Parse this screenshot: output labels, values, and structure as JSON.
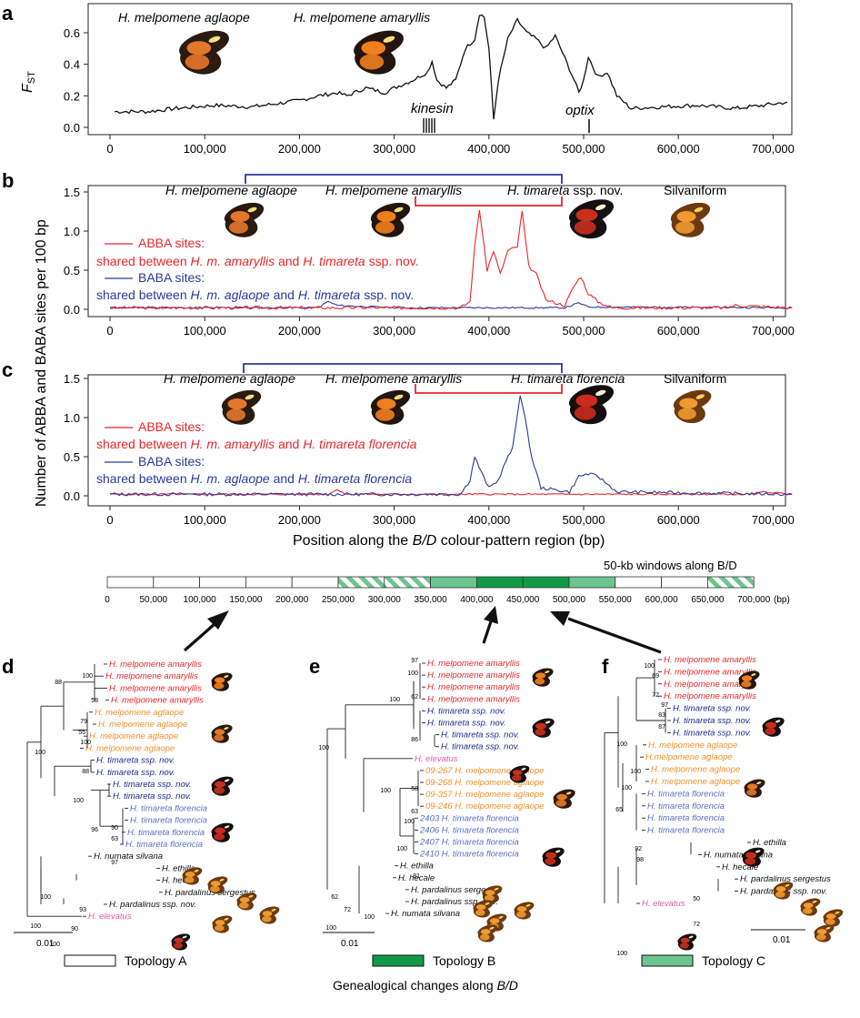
{
  "panels": {
    "a": "a",
    "b": "b",
    "c": "c",
    "d": "d",
    "e": "e",
    "f": "f"
  },
  "panel_a": {
    "ylabel": "FST",
    "ylabel_main": "F",
    "ylabel_sub": "ST",
    "yticks": [
      "0.0",
      "0.2",
      "0.4",
      "0.6"
    ],
    "species_left": "H. melpomene aglaope",
    "species_right": "H. melpomene amaryllis",
    "gene1": "kinesin",
    "gene2": "optix"
  },
  "xticks": [
    "0",
    "100,000",
    "200,000",
    "300,000",
    "400,000",
    "500,000",
    "600,000",
    "700,000"
  ],
  "panel_b": {
    "sp1": "H. melpomene aglaope",
    "sp2": "H. melpomene amaryllis",
    "sp3_genus": "H. timareta",
    "sp3_rest": " ssp. nov.",
    "sp4": "Silvaniform",
    "abba_title": "ABBA sites:",
    "abba_pre": "shared between ",
    "abba_sp1": "H. m. amaryllis",
    "abba_and": " and ",
    "abba_sp2": "H. timareta",
    "abba_post": " ssp. nov.",
    "baba_title": "BABA sites:",
    "baba_pre": "shared between ",
    "baba_sp1": "H. m. aglaope",
    "baba_and": " and ",
    "baba_sp2": "H. timareta",
    "baba_post": " ssp. nov.",
    "yticks": [
      "0.0",
      "0.5",
      "1.0",
      "1.5"
    ]
  },
  "panel_c": {
    "sp1": "H. melpomene aglaope",
    "sp2": "H. melpomene amaryllis",
    "sp3": "H. timareta florencia",
    "sp4": "Silvaniform",
    "abba_title": "ABBA sites:",
    "abba_pre": "shared between ",
    "abba_sp1": "H. m. amaryllis",
    "abba_and": " and ",
    "abba_sp2": "H. timareta florencia",
    "baba_title": "BABA sites:",
    "baba_pre": "shared between ",
    "baba_sp1": "H. m. aglaope",
    "baba_and": " and ",
    "baba_sp2": "H. timareta florencia",
    "yticks": [
      "0.0",
      "0.5",
      "1.0",
      "1.5"
    ]
  },
  "shared_ylabel": "Number of ABBA and BABA sites per 100 bp",
  "xlabel_pre": "Position along the ",
  "xlabel_it": "B/D",
  "xlabel_post": " colour-pattern region (bp)",
  "windows": {
    "title": "50-kb windows along B/D",
    "ticks": [
      "0",
      "50,000",
      "100,000",
      "150,000",
      "200,000",
      "250,000",
      "300,000",
      "350,000",
      "400,000",
      "450,000",
      "500,000",
      "550,000",
      "600,000",
      "650,000",
      "700,000"
    ],
    "unit": "(bp)",
    "topology": [
      "A",
      "A",
      "A",
      "A",
      "A",
      "C-hatch",
      "C-hatch",
      "C",
      "B",
      "B",
      "C",
      "A",
      "A",
      "C-hatch"
    ]
  },
  "tree_d": {
    "leaves": [
      {
        "t": "H. melpomene amaryllis",
        "c": "red"
      },
      {
        "t": "H. melpomene amaryllis",
        "c": "red"
      },
      {
        "t": "H. melpomene amaryllis",
        "c": "red"
      },
      {
        "t": "H. melpomene amaryllis",
        "c": "red"
      },
      {
        "t": "H. melpomene aglaope",
        "c": "orange"
      },
      {
        "t": "H. melpomene aglaope",
        "c": "orange"
      },
      {
        "t": "H. melpomene aglaope",
        "c": "orange"
      },
      {
        "t": "H. melpomene aglaope",
        "c": "orange"
      },
      {
        "t": "H. timareta ssp. nov.",
        "c": "navy"
      },
      {
        "t": "H. timareta ssp. nov.",
        "c": "navy"
      },
      {
        "t": "H. timareta ssp. nov.",
        "c": "navy"
      },
      {
        "t": "H. timareta ssp. nov.",
        "c": "navy"
      },
      {
        "t": "H. timareta florencia",
        "c": "blue"
      },
      {
        "t": "H. timareta florencia",
        "c": "blue"
      },
      {
        "t": "H. timareta florencia",
        "c": "blue"
      },
      {
        "t": "H. timareta florencia",
        "c": "blue"
      },
      {
        "t": "H. numata silvana",
        "c": "black"
      },
      {
        "t": "H. ethilla",
        "c": "black"
      },
      {
        "t": "H. hecale",
        "c": "black"
      },
      {
        "t": "H. pardalinus sergestus",
        "c": "black"
      },
      {
        "t": "H. pardalinus ssp. nov.",
        "c": "black"
      },
      {
        "t": "H. elevatus",
        "c": "pink"
      }
    ],
    "bootstrap": [
      "100",
      "58",
      "88",
      "79",
      "55",
      "100",
      "100",
      "88",
      "100",
      "96",
      "90",
      "63",
      "97",
      "100",
      "93",
      "100",
      "90",
      "100"
    ],
    "scale": "0.01",
    "topology": "Topology A"
  },
  "tree_e": {
    "leaves": [
      {
        "t": "H. melpomene amaryllis",
        "c": "red"
      },
      {
        "t": "H. melpomene amaryllis",
        "c": "red"
      },
      {
        "t": "H. melpomene amaryllis",
        "c": "red"
      },
      {
        "t": "H. melpomene amaryllis",
        "c": "red"
      },
      {
        "t": "H. timareta ssp. nov.",
        "c": "navy"
      },
      {
        "t": "H. timareta ssp. nov.",
        "c": "navy"
      },
      {
        "t": "H. timareta ssp. nov.",
        "c": "navy"
      },
      {
        "t": "H. timareta ssp. nov.",
        "c": "navy"
      },
      {
        "t": "H. elevatus",
        "c": "pink"
      },
      {
        "t": "09-267 H. melpomene aglaope",
        "c": "orange"
      },
      {
        "t": "09-268 H. melpomene aglaope",
        "c": "orange"
      },
      {
        "t": "09-357 H. melpomene aglaope",
        "c": "orange"
      },
      {
        "t": "09-246 H. melpomene aglaope",
        "c": "orange"
      },
      {
        "t": "2403 H. timareta florencia",
        "c": "blue"
      },
      {
        "t": "2406 H. timareta florencia",
        "c": "blue"
      },
      {
        "t": "2407 H. timareta florencia",
        "c": "blue"
      },
      {
        "t": "2410 H. timareta florencia",
        "c": "blue"
      },
      {
        "t": "H. ethilla",
        "c": "black"
      },
      {
        "t": "H. hecale",
        "c": "black"
      },
      {
        "t": "H. pardalinus sergestus",
        "c": "black"
      },
      {
        "t": "H. pardalinus ssp. nov.",
        "c": "black"
      },
      {
        "t": "H. numata silvana",
        "c": "black"
      }
    ],
    "bootstrap": [
      "97",
      "100",
      "62",
      "100",
      "86",
      "100",
      "58",
      "100",
      "63",
      "100",
      "100",
      "81",
      "62",
      "72",
      "100",
      "100"
    ],
    "scale": "0.01",
    "topology": "Topology B"
  },
  "tree_f": {
    "leaves": [
      {
        "t": "H. melpomene amaryllis",
        "c": "red"
      },
      {
        "t": "H. melpomene amaryllis",
        "c": "red"
      },
      {
        "t": "H. melpomene amaryllis",
        "c": "red"
      },
      {
        "t": "H. melpomene amaryllis",
        "c": "red"
      },
      {
        "t": "H. timareta ssp. nov.",
        "c": "navy"
      },
      {
        "t": "H. timareta ssp. nov.",
        "c": "navy"
      },
      {
        "t": "H. timareta ssp. nov.",
        "c": "navy"
      },
      {
        "t": "H. melpomene aglaope",
        "c": "orange"
      },
      {
        "t": "H.melpomene aglaope",
        "c": "orange"
      },
      {
        "t": "H. melpomene aglaope",
        "c": "orange"
      },
      {
        "t": "H. melpomene aglaope",
        "c": "orange"
      },
      {
        "t": "H. timareta florencia",
        "c": "blue"
      },
      {
        "t": "H. timareta florencia",
        "c": "blue"
      },
      {
        "t": "H. timareta florencia",
        "c": "blue"
      },
      {
        "t": "H. timareta florencia",
        "c": "blue"
      },
      {
        "t": "H. ethilla",
        "c": "black"
      },
      {
        "t": "H. numata silvana",
        "c": "black"
      },
      {
        "t": "H. hecale",
        "c": "black"
      },
      {
        "t": "H. pardalinus sergestus",
        "c": "black"
      },
      {
        "t": "H. pardalinus ssp. nov.",
        "c": "black"
      },
      {
        "t": "H. elevatus",
        "c": "pink"
      }
    ],
    "bootstrap": [
      "100",
      "69",
      "72",
      "97",
      "83",
      "87",
      "100",
      "100",
      "100",
      "65",
      "92",
      "98",
      "50",
      "72",
      "100"
    ],
    "scale": "0.01",
    "topology": "Topology C"
  },
  "footer": {
    "pre": "Genealogical changes along ",
    "it": "B/D"
  },
  "colors": {
    "abba": "#e8262a",
    "baba": "#2b3a9a",
    "red": "#e8262a",
    "orange": "#f0902a",
    "navy": "#1d2a8c",
    "blue": "#5b6fc2",
    "pink": "#e85aa8",
    "black": "#111111",
    "topoB": "#119a45",
    "topoC": "#6cc58e"
  }
}
